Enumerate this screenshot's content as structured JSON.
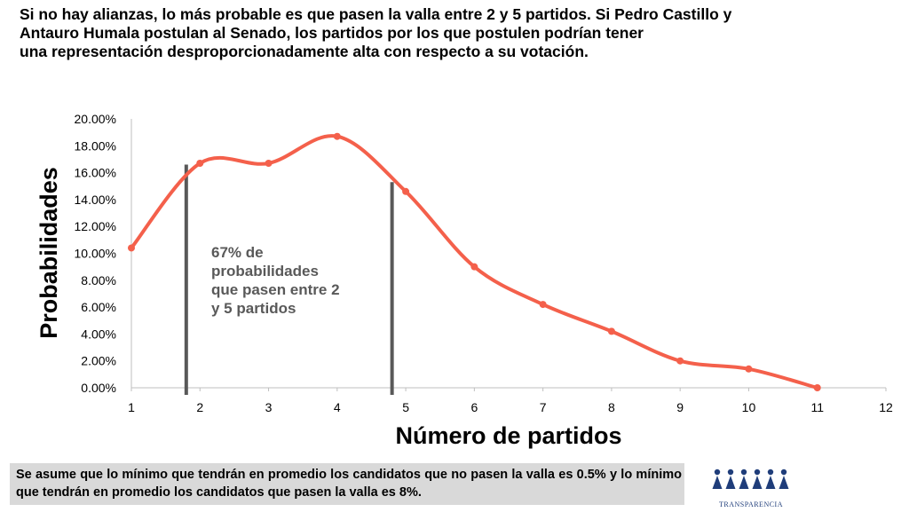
{
  "headline": {
    "line1": "Si no hay alianzas, lo más probable es que pasen la valla entre 2 y 5 partidos. Si Pedro Castillo y",
    "line2": "Antauro Humala postulan al Senado, los partidos por los que postulen podrían tener",
    "line3": " una representación desproporcionadamente alta con respecto a su votación."
  },
  "chart_data": {
    "type": "line",
    "xlabel": "Número de partidos",
    "ylabel": "Probabilidades",
    "x_ticks": [
      1,
      2,
      3,
      4,
      5,
      6,
      7,
      8,
      9,
      10,
      11,
      12
    ],
    "y_ticks": [
      "0.00%",
      "2.00%",
      "4.00%",
      "6.00%",
      "8.00%",
      "10.00%",
      "12.00%",
      "14.00%",
      "16.00%",
      "18.00%",
      "20.00%"
    ],
    "xlim": [
      1,
      12
    ],
    "ylim": [
      0,
      20
    ],
    "series": [
      {
        "x": [
          1,
          2,
          3,
          4,
          5,
          6,
          7,
          8,
          9,
          10,
          11
        ],
        "y": [
          10.4,
          16.7,
          16.7,
          18.7,
          14.6,
          9.0,
          6.2,
          4.2,
          2.0,
          1.4,
          0.0
        ],
        "color": "#f4604b"
      }
    ],
    "vlines": [
      1.8,
      4.8
    ],
    "vline_color": "#595959",
    "grid": false,
    "annotation": {
      "lines": [
        "67% de",
        "probabilidades",
        "que pasen entre 2",
        "y 5 partidos"
      ],
      "color": "#595959"
    }
  },
  "note": {
    "text": "Se asume que lo mínimo que tendrán en promedio los candidatos que no pasen la valla es 0.5% y lo mínimo que tendrán en promedio los candidatos que pasen la valla es 8%."
  },
  "logo": {
    "text": "TRANSPARENCIA",
    "color": "#1f3d7a"
  }
}
